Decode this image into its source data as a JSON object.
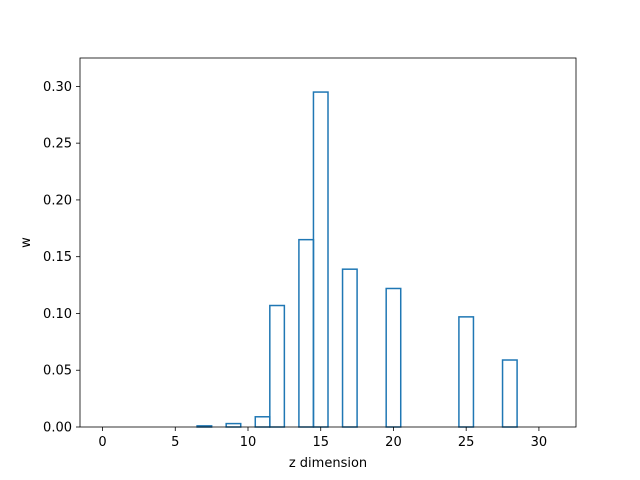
{
  "chart_data": {
    "type": "bar",
    "style": "step-histogram",
    "xlabel": "z dimension",
    "ylabel": "w",
    "xlim": [
      -1.55,
      32.55
    ],
    "ylim": [
      0,
      0.325
    ],
    "x_ticks": [
      0,
      5,
      10,
      15,
      20,
      25,
      30
    ],
    "x_tick_labels": [
      "0",
      "5",
      "10",
      "15",
      "20",
      "25",
      "30"
    ],
    "y_ticks": [
      0,
      0.05,
      0.1,
      0.15,
      0.2,
      0.25,
      0.3
    ],
    "y_tick_labels": [
      "0.00",
      "0.05",
      "0.10",
      "0.15",
      "0.20",
      "0.25",
      "0.30"
    ],
    "grid": false,
    "x": [
      0,
      1,
      2,
      3,
      4,
      5,
      6,
      7,
      8,
      9,
      10,
      11,
      12,
      13,
      14,
      15,
      16,
      17,
      18,
      19,
      20,
      21,
      22,
      23,
      24,
      25,
      26,
      27,
      28,
      29,
      30,
      31
    ],
    "series": [
      {
        "values": [
          0,
          0,
          0,
          0,
          0,
          0,
          0,
          0.001,
          0,
          0.003,
          0,
          0.009,
          0.107,
          0,
          0.165,
          0.295,
          0,
          0.139,
          0,
          0,
          0.122,
          0,
          0,
          0,
          0,
          0.097,
          0,
          0,
          0.059,
          0,
          0,
          0
        ],
        "color": "#1f77b4"
      }
    ]
  }
}
